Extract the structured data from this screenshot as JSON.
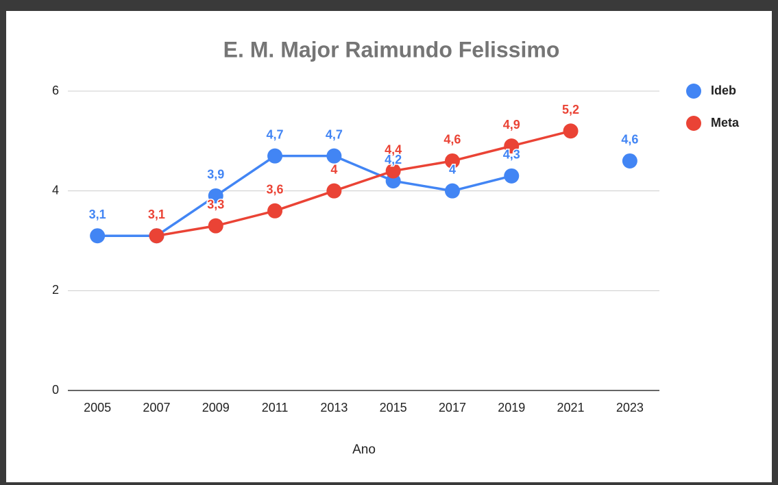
{
  "chart_data": {
    "type": "line",
    "title": "E. M. Major Raimundo Felissimo",
    "x_label": "Ano",
    "categories": [
      "2005",
      "2007",
      "2009",
      "2011",
      "2013",
      "2015",
      "2017",
      "2019",
      "2021",
      "2023"
    ],
    "series": [
      {
        "name": "Ideb",
        "color": "#4285f4",
        "values": [
          3.1,
          3.1,
          3.9,
          4.7,
          4.7,
          4.2,
          4.0,
          4.3,
          null,
          4.6
        ],
        "value_labels": [
          "3,1",
          null,
          "3,9",
          "4,7",
          "4,7",
          "4,2",
          "4",
          "4,3",
          null,
          "4,6"
        ]
      },
      {
        "name": "Meta",
        "color": "#ea4335",
        "values": [
          null,
          3.1,
          3.3,
          3.6,
          4.0,
          4.4,
          4.6,
          4.9,
          5.2,
          null
        ],
        "value_labels": [
          null,
          "3,1",
          "3,3",
          "3,6",
          "4",
          "4,4",
          "4,6",
          "4,9",
          "5,2",
          null
        ]
      }
    ],
    "ylim": [
      0,
      6
    ],
    "yticks": [
      0,
      2,
      4,
      6
    ],
    "grid": true,
    "legend": "right"
  }
}
